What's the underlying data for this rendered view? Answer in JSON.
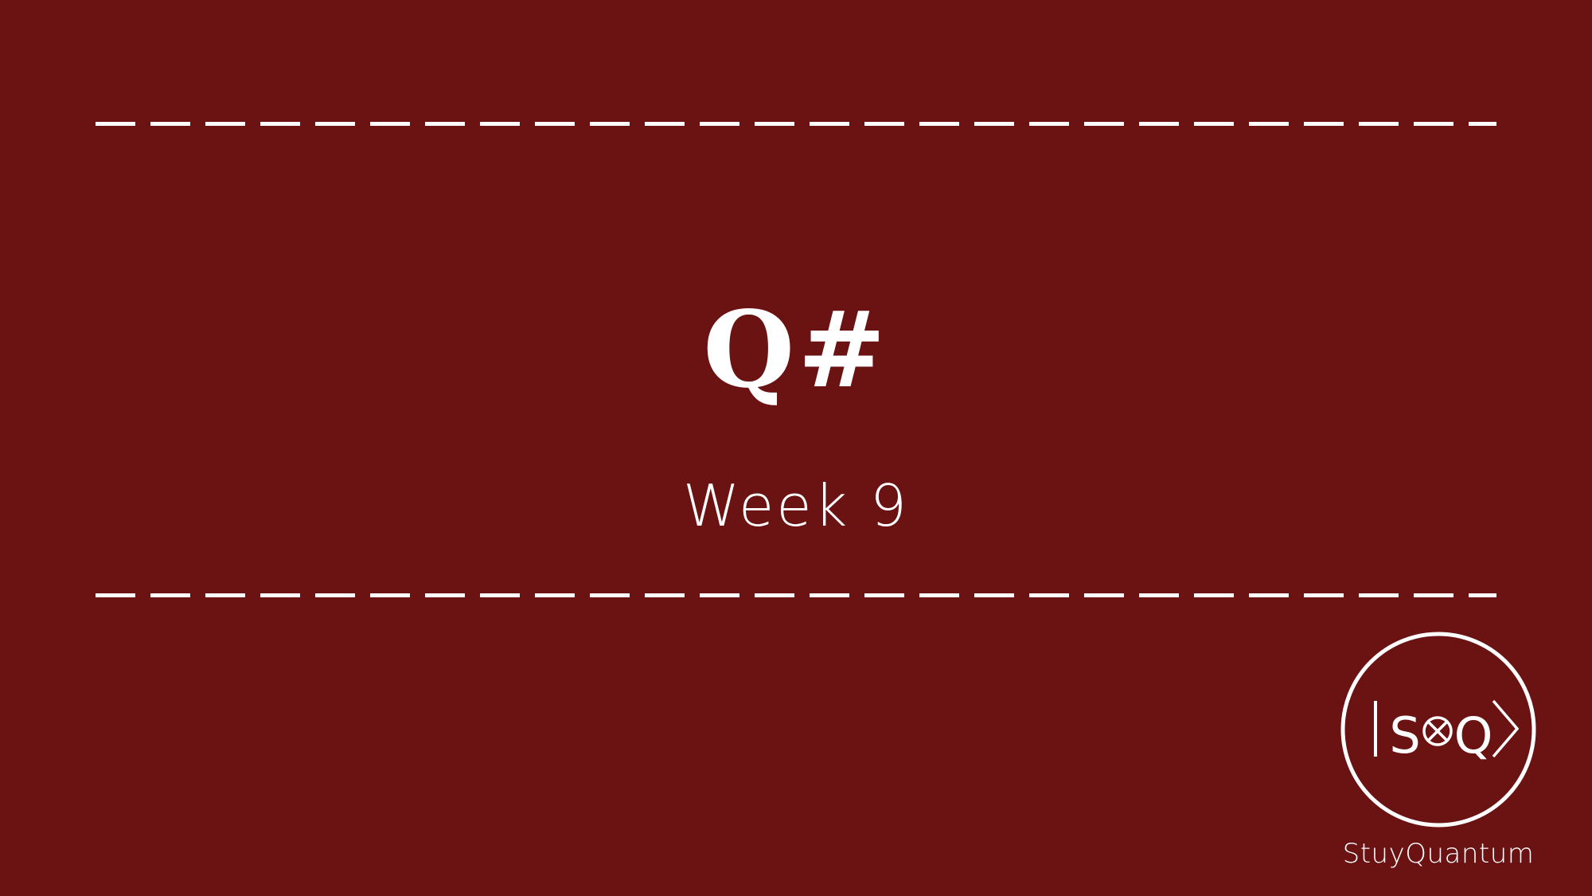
{
  "slide": {
    "title": "Q#",
    "subtitle": "Week 9",
    "background_color": "#6b1213",
    "text_color": "#ffffff",
    "logo": {
      "icon": "stuyquantum-logo-icon",
      "mark_text": "|S⊗Q⟩",
      "caption": "StuyQuantum"
    }
  }
}
